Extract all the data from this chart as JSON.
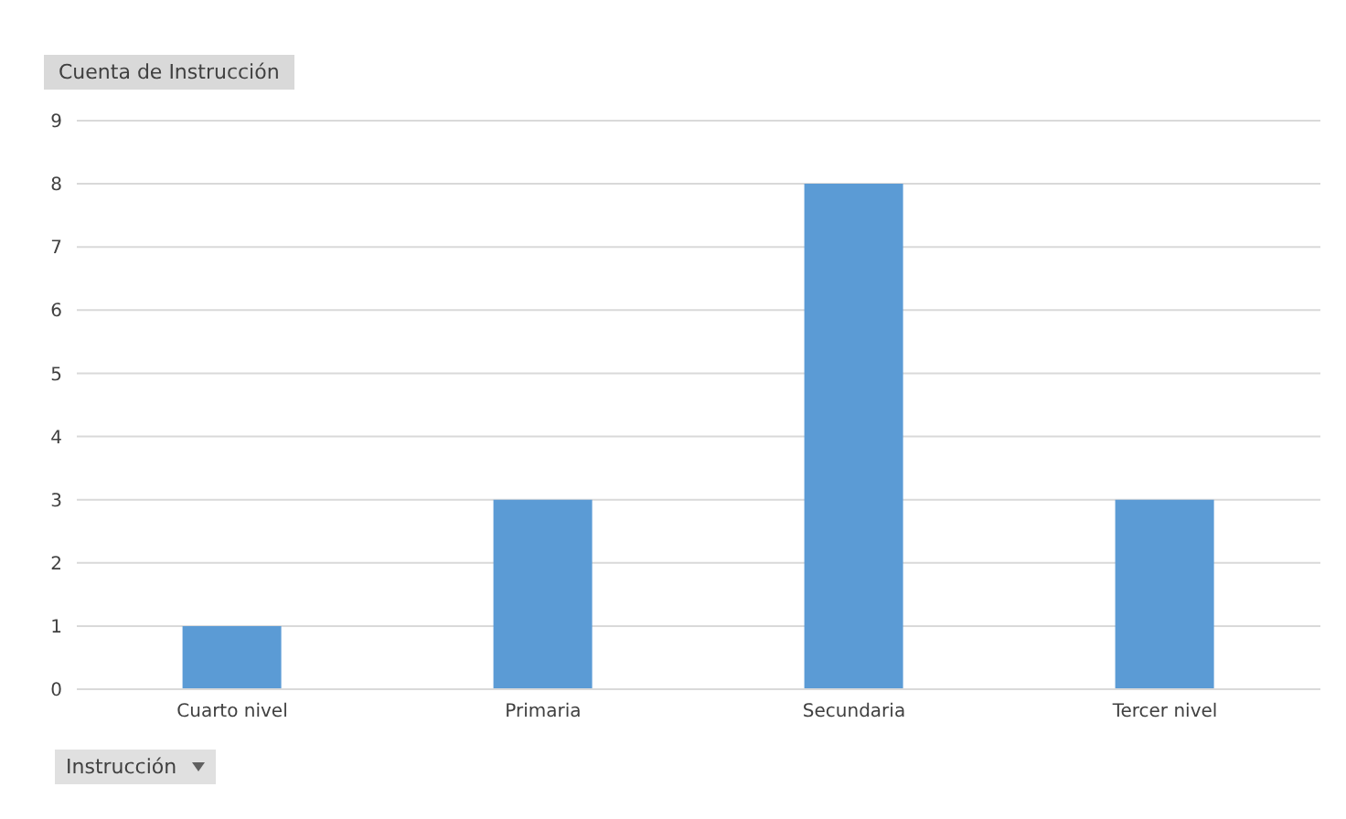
{
  "chart_data": {
    "type": "bar",
    "title": "Cuenta de Instrucción",
    "categories": [
      "Cuarto nivel",
      "Primaria",
      "Secundaria",
      "Tercer nivel"
    ],
    "values": [
      1,
      3,
      8,
      3
    ],
    "color": "#5b9bd5",
    "ylim": [
      0,
      9
    ],
    "yticks": [
      0,
      1,
      2,
      3,
      4,
      5,
      6,
      7,
      8,
      9
    ],
    "grid": "y",
    "annotations": [
      "Instrucción"
    ]
  }
}
